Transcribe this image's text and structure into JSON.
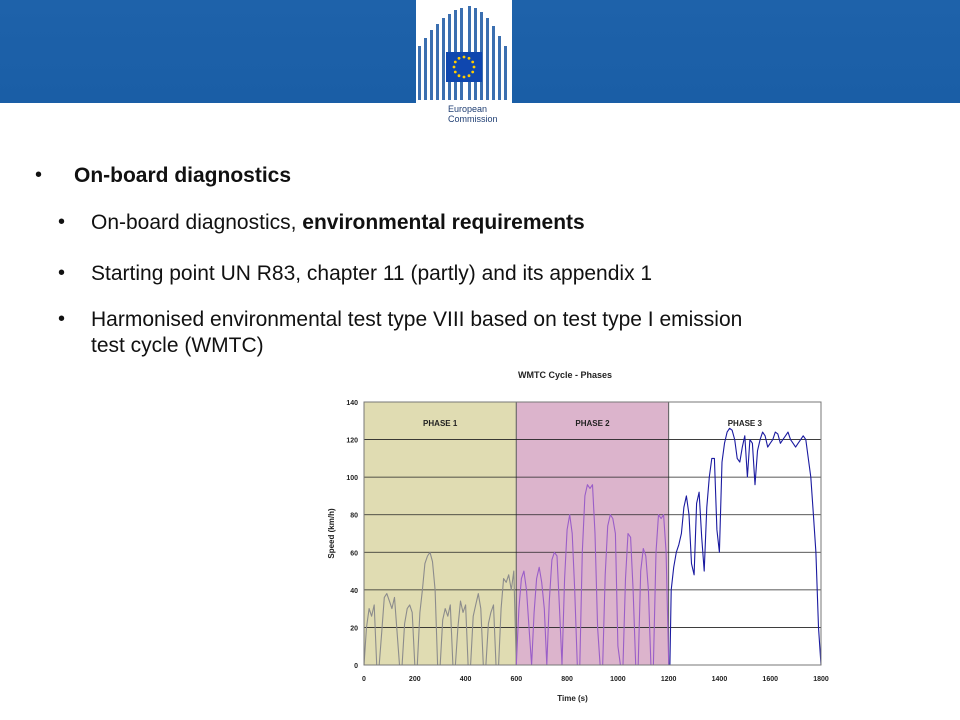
{
  "header": {
    "logo_line1": "European",
    "logo_line2": "Commission",
    "brand_blue": "#1e62aa"
  },
  "bullets": {
    "heading": "On-board diagnostics",
    "items": [
      {
        "prefix": "On-board diagnostics, ",
        "bold": "environmental requirements"
      },
      {
        "prefix": "Starting point UN R83, chapter 11 (partly) and its appendix 1",
        "bold": ""
      },
      {
        "line1": "Harmonised environmental test type VIII based on test type I emission",
        "line2": "test cycle (WMTC)"
      }
    ]
  },
  "chart_data": {
    "type": "line",
    "title": "WMTC Cycle - Phases",
    "xlabel": "Time (s)",
    "ylabel": "Speed (km/h)",
    "xlim": [
      0,
      1800
    ],
    "ylim": [
      0,
      140
    ],
    "x_ticks": [
      0,
      200,
      400,
      600,
      800,
      1000,
      1200,
      1400,
      1600,
      1800
    ],
    "y_ticks": [
      0,
      20,
      40,
      60,
      80,
      100,
      120,
      140
    ],
    "grid": true,
    "phases": [
      {
        "label": "PHASE 1",
        "start": 0,
        "end": 600,
        "color": "#e0dcb2"
      },
      {
        "label": "PHASE 2",
        "start": 600,
        "end": 1200,
        "color": "#dcb4cc"
      },
      {
        "label": "PHASE 3",
        "start": 1200,
        "end": 1800,
        "color": "#ffffff"
      }
    ],
    "series": [
      {
        "color": "#8c8c8c",
        "x": [
          0,
          10,
          20,
          30,
          40,
          50,
          60,
          70,
          80,
          90,
          100,
          110,
          120,
          130,
          140,
          150,
          160,
          170,
          180,
          190,
          200,
          210,
          220,
          230,
          240,
          250,
          260,
          270,
          280,
          290,
          300,
          310,
          320,
          330,
          340,
          350,
          360,
          370,
          380,
          390,
          400,
          410,
          420,
          430,
          440,
          450,
          460,
          470,
          480,
          490,
          500,
          510,
          520,
          530,
          540,
          550,
          560,
          570,
          580,
          590,
          600
        ],
        "y": [
          0,
          20,
          30,
          26,
          32,
          0,
          0,
          18,
          36,
          38,
          34,
          30,
          36,
          18,
          0,
          0,
          22,
          30,
          32,
          28,
          0,
          0,
          28,
          40,
          54,
          58,
          60,
          55,
          40,
          0,
          0,
          24,
          30,
          26,
          32,
          0,
          0,
          20,
          34,
          28,
          32,
          0,
          0,
          26,
          32,
          38,
          30,
          0,
          0,
          22,
          28,
          32,
          0,
          0,
          30,
          46,
          44,
          48,
          40,
          50,
          0
        ]
      },
      {
        "color": "#9a5ec8",
        "x": [
          600,
          610,
          620,
          630,
          640,
          650,
          660,
          670,
          680,
          690,
          700,
          710,
          720,
          730,
          740,
          750,
          760,
          770,
          780,
          790,
          800,
          810,
          820,
          830,
          840,
          850,
          860,
          870,
          880,
          890,
          900,
          910,
          920,
          930,
          940,
          950,
          960,
          970,
          980,
          990,
          1000,
          1010,
          1020,
          1030,
          1040,
          1050,
          1060,
          1070,
          1080,
          1090,
          1100,
          1110,
          1120,
          1130,
          1140,
          1150,
          1160,
          1170,
          1180,
          1190,
          1200
        ],
        "y": [
          0,
          30,
          46,
          50,
          40,
          20,
          0,
          28,
          46,
          52,
          44,
          30,
          0,
          34,
          56,
          60,
          58,
          30,
          0,
          46,
          72,
          80,
          70,
          40,
          0,
          0,
          60,
          90,
          96,
          94,
          96,
          70,
          20,
          0,
          0,
          48,
          74,
          80,
          78,
          70,
          10,
          0,
          0,
          46,
          70,
          68,
          40,
          0,
          0,
          50,
          62,
          58,
          40,
          0,
          0,
          60,
          80,
          78,
          80,
          60,
          0
        ]
      },
      {
        "color": "#1a1aa0",
        "x": [
          1200,
          1205,
          1210,
          1220,
          1230,
          1240,
          1250,
          1260,
          1270,
          1280,
          1290,
          1300,
          1310,
          1320,
          1330,
          1340,
          1350,
          1360,
          1370,
          1380,
          1390,
          1400,
          1410,
          1420,
          1430,
          1440,
          1450,
          1460,
          1470,
          1480,
          1490,
          1500,
          1510,
          1520,
          1530,
          1540,
          1550,
          1560,
          1570,
          1580,
          1590,
          1600,
          1610,
          1620,
          1630,
          1640,
          1650,
          1660,
          1670,
          1680,
          1690,
          1700,
          1710,
          1720,
          1730,
          1740,
          1750,
          1760,
          1770,
          1780,
          1790,
          1800
        ],
        "y": [
          0,
          0,
          40,
          52,
          60,
          64,
          70,
          84,
          90,
          80,
          54,
          48,
          86,
          92,
          68,
          50,
          84,
          100,
          110,
          110,
          72,
          60,
          108,
          118,
          124,
          126,
          125,
          120,
          110,
          108,
          116,
          122,
          100,
          120,
          118,
          96,
          114,
          120,
          124,
          122,
          116,
          118,
          120,
          124,
          123,
          118,
          120,
          122,
          124,
          120,
          118,
          116,
          118,
          120,
          122,
          120,
          110,
          100,
          80,
          60,
          20,
          0
        ]
      }
    ]
  }
}
